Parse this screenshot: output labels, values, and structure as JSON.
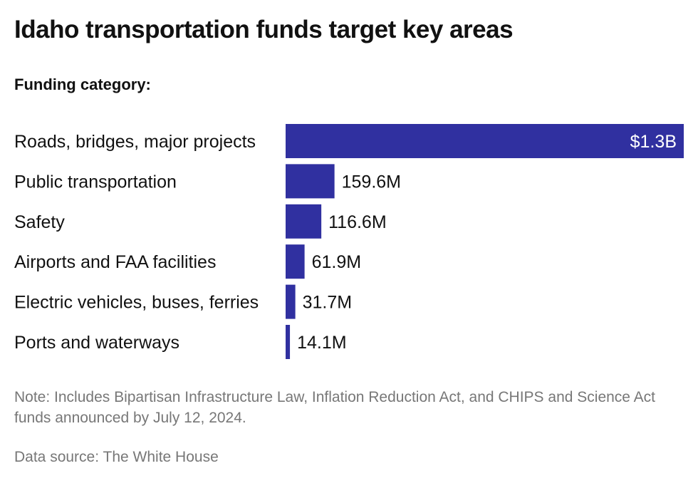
{
  "title": "Idaho transportation funds target key areas",
  "subtitle": "Funding category:",
  "chart_data": {
    "type": "bar",
    "orientation": "horizontal",
    "categories": [
      "Roads, bridges, major projects",
      "Public transportation",
      "Safety",
      "Airports and FAA facilities",
      "Electric vehicles, buses, ferries",
      "Ports and waterways"
    ],
    "values": [
      1300000000,
      159600000,
      116600000,
      61900000,
      31700000,
      14100000
    ],
    "value_labels": [
      "$1.3B",
      "159.6M",
      "116.6M",
      "61.9M",
      "31.7M",
      "14.1M"
    ],
    "bar_color": "#3030a0",
    "xlim": [
      0,
      1300000000
    ],
    "grid": false,
    "legend": "none"
  },
  "note": "Note: Includes Bipartisan Infrastructure Law, Inflation Reduction Act, and CHIPS and Science Act funds announced by July 12, 2024.",
  "source": "Data source: The White House"
}
